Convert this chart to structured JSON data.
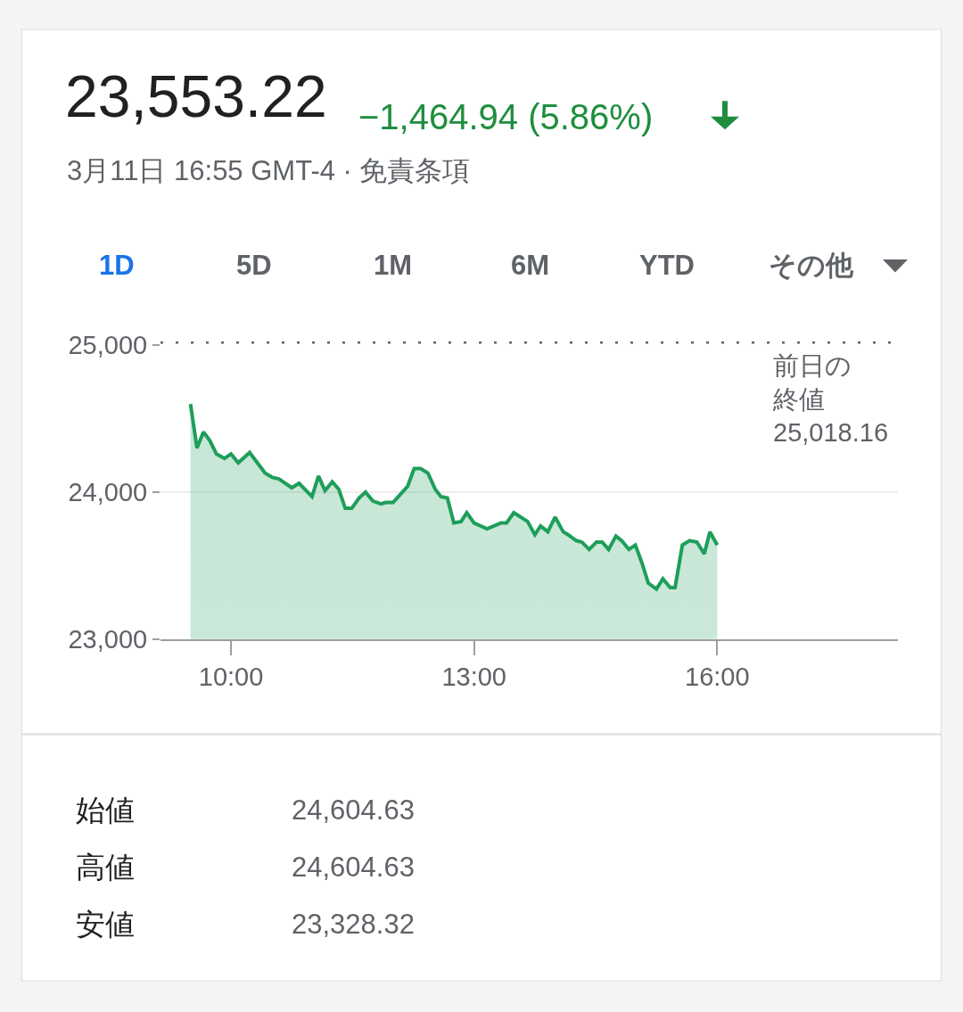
{
  "chart_data": {
    "type": "area",
    "title": "23,553.22",
    "subtitle": "3月11日 16:55 GMT-4 · 免責条項",
    "annotations": [
      "−1,464.94 (5.86%)",
      "1D",
      "5D",
      "1M",
      "6M",
      "YTD",
      "その他",
      "始値",
      "24,604.63",
      "高値",
      "24,604.63",
      "安値",
      "23,328.32"
    ],
    "x": [
      9.5,
      9.58,
      9.66,
      9.74,
      9.82,
      9.92,
      10.0,
      10.09,
      10.23,
      10.42,
      10.51,
      10.59,
      10.75,
      10.84,
      11.0,
      11.08,
      11.16,
      11.25,
      11.33,
      11.41,
      11.49,
      11.58,
      11.66,
      11.75,
      11.85,
      11.91,
      12.0,
      12.18,
      12.26,
      12.34,
      12.43,
      12.52,
      12.59,
      12.67,
      12.75,
      12.84,
      12.91,
      13.0,
      13.16,
      13.33,
      13.4,
      13.49,
      13.66,
      13.75,
      13.82,
      13.91,
      14.0,
      14.1,
      14.16,
      14.26,
      14.33,
      14.42,
      14.51,
      14.58,
      14.66,
      14.75,
      14.82,
      14.91,
      14.99,
      15.07,
      15.15,
      15.25,
      15.33,
      15.42,
      15.48,
      15.57,
      15.66,
      15.75,
      15.84,
      15.91,
      16.0
    ],
    "series": [
      {
        "color": "#1e9e5a",
        "values": [
          24600,
          24300,
          24410,
          24350,
          24260,
          24230,
          24260,
          24200,
          24270,
          24130,
          24100,
          24090,
          24030,
          24060,
          23970,
          24110,
          24010,
          24070,
          24020,
          23890,
          23890,
          23960,
          24000,
          23940,
          23920,
          23930,
          23930,
          24040,
          24160,
          24160,
          24130,
          24020,
          23970,
          23960,
          23790,
          23800,
          23860,
          23790,
          23750,
          23790,
          23790,
          23860,
          23800,
          23710,
          23770,
          23730,
          23830,
          23730,
          23710,
          23670,
          23660,
          23610,
          23660,
          23660,
          23610,
          23700,
          23670,
          23610,
          23640,
          23520,
          23380,
          23340,
          23410,
          23350,
          23350,
          23640,
          23670,
          23660,
          23580,
          23730,
          23640
        ]
      }
    ],
    "xlim": [
      9.13,
      18.23
    ],
    "xticks": [
      {
        "value": 10,
        "label": "10:00"
      },
      {
        "value": 13,
        "label": "13:00"
      },
      {
        "value": 16,
        "label": "16:00"
      }
    ],
    "ylim": [
      23000,
      25000
    ],
    "yticks": [
      {
        "value": 23000,
        "label": "23,000"
      },
      {
        "value": 24000,
        "label": "24,000"
      },
      {
        "value": 25000,
        "label": "25,000"
      }
    ],
    "grid": "y",
    "ref_lines": [
      {
        "axis": "y",
        "value": 25018.16,
        "label": "前日の終値\n25,018.16",
        "color": "#5f6368",
        "line_style": "dotted"
      }
    ]
  }
}
